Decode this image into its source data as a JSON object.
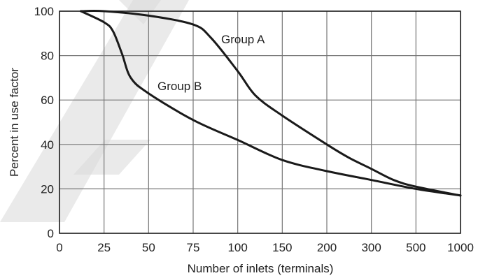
{
  "chart_data": {
    "type": "line",
    "title": "",
    "xlabel": "Number of inlets (terminals)",
    "ylabel": "Percent in use factor",
    "x_ticks": [
      "0",
      "25",
      "50",
      "75",
      "100",
      "150",
      "200",
      "300",
      "500",
      "1000"
    ],
    "x_scale": "categorical-spaced (0,25,50,75,100,150,200,300,500,1000 at equal spacing)",
    "y_ticks": [
      "0",
      "20",
      "40",
      "60",
      "80",
      "100"
    ],
    "ylim": [
      0,
      100
    ],
    "grid": true,
    "legend": "none (series labeled inline)",
    "series": [
      {
        "name": "Group A",
        "x": [
          12,
          25,
          50,
          75,
          85,
          100,
          120,
          150,
          200,
          250,
          300,
          400,
          500,
          1000
        ],
        "y": [
          100,
          100,
          98,
          94,
          88,
          73,
          62,
          53,
          40,
          34,
          29,
          24,
          21,
          17
        ]
      },
      {
        "name": "Group B",
        "x": [
          12,
          25,
          30,
          35,
          40,
          50,
          75,
          100,
          150,
          200,
          300,
          500,
          1000
        ],
        "y": [
          100,
          95,
          91,
          81,
          70,
          63,
          51,
          42,
          33,
          28,
          24,
          20,
          17
        ]
      }
    ],
    "annotations": [
      "Group A",
      "Group B"
    ]
  }
}
